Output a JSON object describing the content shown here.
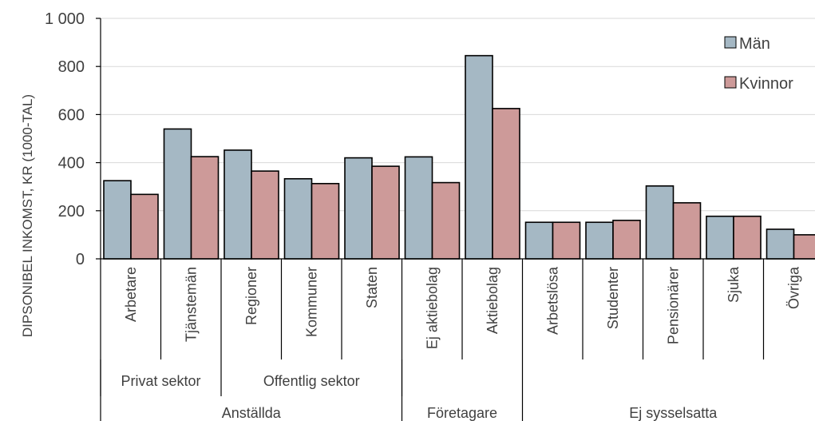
{
  "chart_data": {
    "type": "bar",
    "ylabel": "DIPSONIBEL INKOMST, KR  (1000-TAL)",
    "ylim": [
      0,
      1000
    ],
    "y_ticks": [
      "0",
      "200",
      "400",
      "600",
      "800",
      "1 000"
    ],
    "y_tick_values": [
      0,
      200,
      400,
      600,
      800,
      1000
    ],
    "grid": "horizontal",
    "legend_position": "top-right",
    "categories": [
      "Arbetare",
      "Tjänstemän",
      "Regioner",
      "Kommuner",
      "Staten",
      "Ej aktiebolag",
      "Aktiebolag",
      "Arbetslösa",
      "Studenter",
      "Pensionärer",
      "Sjuka",
      "Övriga"
    ],
    "series": [
      {
        "name": "Män",
        "color": "#a5b8c4",
        "values": [
          325,
          540,
          452,
          333,
          420,
          424,
          845,
          152,
          152,
          303,
          177,
          123
        ]
      },
      {
        "name": "Kvinnor",
        "color": "#cd9a99",
        "values": [
          268,
          425,
          365,
          313,
          385,
          317,
          625,
          152,
          160,
          233,
          177,
          100
        ]
      }
    ],
    "groups_level1": [
      {
        "label": "Privat sektor",
        "start": 0,
        "end": 1
      },
      {
        "label": "Offentlig sektor",
        "start": 2,
        "end": 4
      }
    ],
    "groups_level2": [
      {
        "label": "Anställda",
        "start": 0,
        "end": 4
      },
      {
        "label": "Företagare",
        "start": 5,
        "end": 6
      },
      {
        "label": "Ej sysselsatta",
        "start": 7,
        "end": 11
      }
    ]
  }
}
